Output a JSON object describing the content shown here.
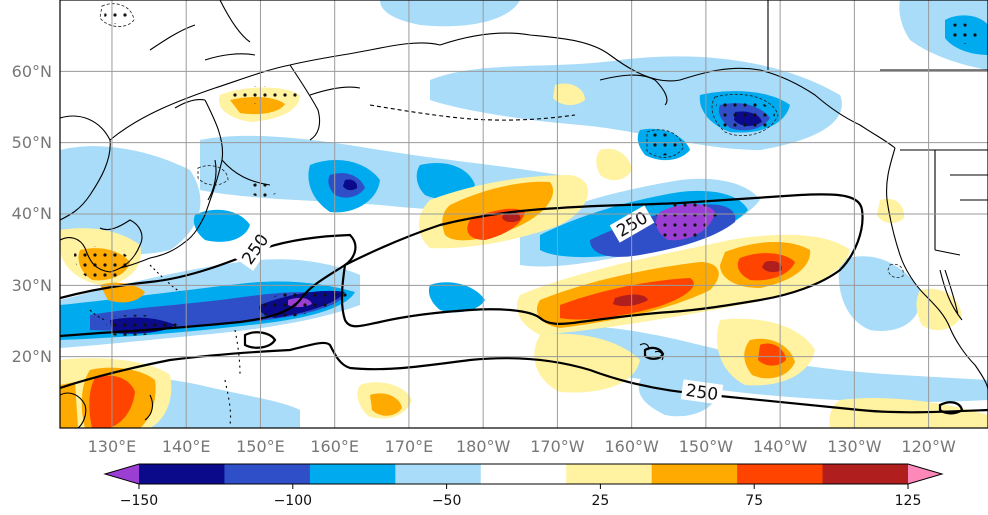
{
  "map": {
    "lat_labels": [
      "60°N",
      "50°N",
      "40°N",
      "30°N",
      "20°N"
    ],
    "lon_labels": [
      "130°E",
      "140°E",
      "150°E",
      "160°E",
      "170°E",
      "180°W",
      "170°W",
      "160°W",
      "150°W",
      "140°W",
      "130°W",
      "120°W"
    ],
    "contour_labels": [
      "250",
      "250",
      "250"
    ],
    "extent": {
      "lon_min": 123,
      "lon_max": 248,
      "lat_min": 10,
      "lat_max": 70
    }
  },
  "colorbar": {
    "ticks": [
      "−150",
      "−100",
      "−50",
      "25",
      "75",
      "125"
    ],
    "colors": [
      "#9b3fd4",
      "#0a0a8a",
      "#2f4fc8",
      "#00aaee",
      "#a8dcf8",
      "#ffffff",
      "#fff2a0",
      "#ffaa00",
      "#ff4400",
      "#b01e1e",
      "#ff88bb"
    ]
  }
}
